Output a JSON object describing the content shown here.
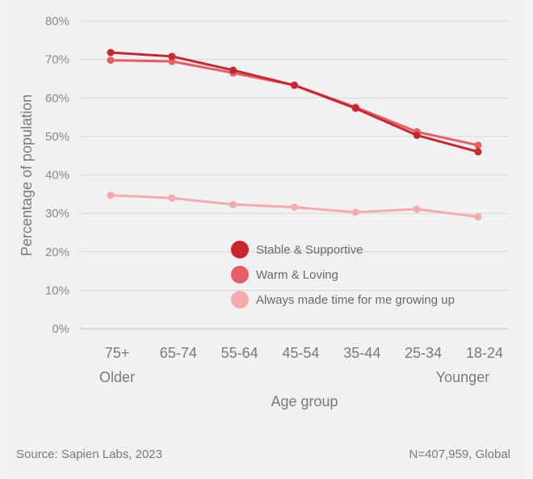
{
  "chart_data": {
    "type": "line",
    "title": "",
    "xlabel": "Age group",
    "ylabel": "Percentage of population",
    "categories": [
      "75+",
      "65-74",
      "55-64",
      "45-54",
      "35-44",
      "25-34",
      "18-24"
    ],
    "x_sublabels": {
      "left": "Older",
      "right": "Younger"
    },
    "ylim": [
      0,
      80
    ],
    "yticks": [
      "0%",
      "10%",
      "20%",
      "30%",
      "40%",
      "50%",
      "60%",
      "70%",
      "80%"
    ],
    "grid": true,
    "legend_position": "center",
    "series": [
      {
        "name": "Stable & Supportive",
        "color": "#c9262f",
        "values": [
          71.8,
          70.8,
          67.2,
          63.3,
          57.3,
          50.3,
          46.0
        ]
      },
      {
        "name": "Warm & Loving",
        "color": "#e95e62",
        "values": [
          69.8,
          69.5,
          66.5,
          63.3,
          57.6,
          51.2,
          47.7
        ]
      },
      {
        "name": "Always made time for me growing up",
        "color": "#f5abad",
        "values": [
          34.7,
          34.0,
          32.3,
          31.6,
          30.3,
          31.1,
          29.1
        ]
      }
    ]
  },
  "footer": {
    "source": "Source: Sapien Labs, 2023",
    "sample": "N=407,959, Global"
  }
}
